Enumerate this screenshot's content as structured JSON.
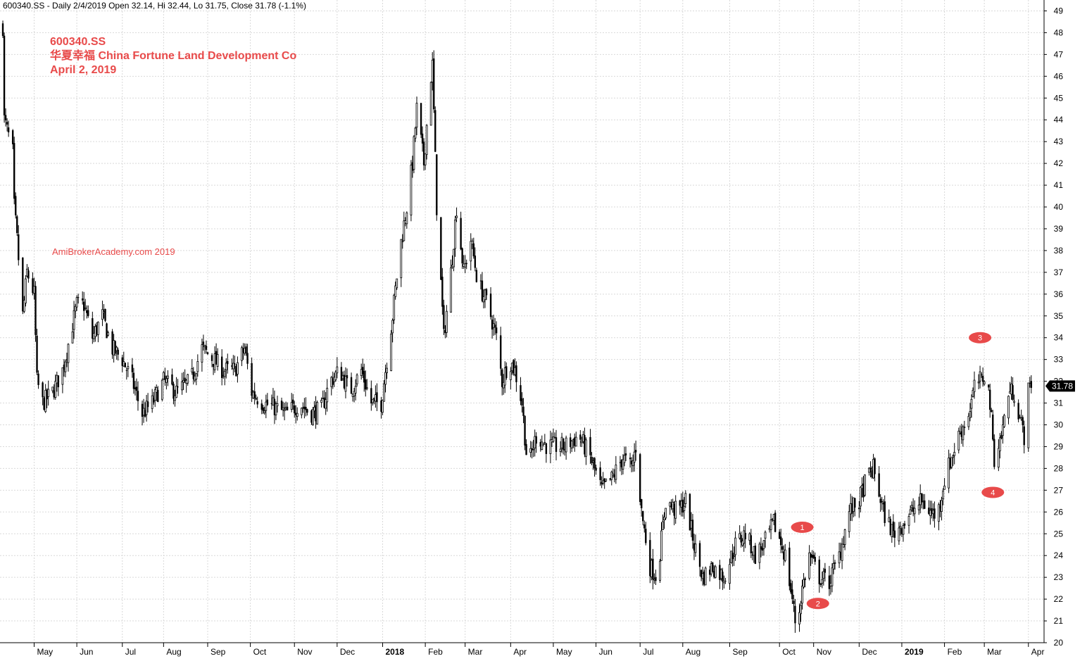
{
  "header": {
    "info_line": "600340.SS - Daily 2/4/2019 Open 32.14, Hi 32.44, Lo 31.75, Close 31.78 (-1.1%)"
  },
  "title_block": {
    "ticker": "600340.SS",
    "company": "华夏幸福  China Fortune Land Development Co",
    "date": "April 2, 2019"
  },
  "watermark": "AmiBrokerAcademy.com  2019",
  "colors": {
    "candles": "#000000",
    "annotation": "#e84a4a",
    "grid": "#d9d9d9",
    "price_tag_bg": "#000000",
    "price_tag_text": "#ffffff"
  },
  "chart_data": {
    "type": "candlestick",
    "title": "600340.SS",
    "ylim": [
      20,
      49.5
    ],
    "y_ticks": [
      20,
      21,
      22,
      23,
      24,
      25,
      26,
      27,
      28,
      29,
      30,
      31,
      32,
      33,
      34,
      35,
      36,
      37,
      38,
      39,
      40,
      41,
      42,
      43,
      44,
      45,
      46,
      47,
      48,
      49
    ],
    "x_range": [
      "2017-04-08",
      "2019-04-12"
    ],
    "x_ticks": [
      {
        "label": "May",
        "date": "2017-05-02",
        "bold": false
      },
      {
        "label": "Jun",
        "date": "2017-06-01",
        "bold": false
      },
      {
        "label": "Jul",
        "date": "2017-07-03",
        "bold": false
      },
      {
        "label": "Aug",
        "date": "2017-08-01",
        "bold": false
      },
      {
        "label": "Sep",
        "date": "2017-09-01",
        "bold": false
      },
      {
        "label": "Oct",
        "date": "2017-10-01",
        "bold": false
      },
      {
        "label": "Nov",
        "date": "2017-11-01",
        "bold": false
      },
      {
        "label": "Dec",
        "date": "2017-12-01",
        "bold": false
      },
      {
        "label": "2018",
        "date": "2018-01-02",
        "bold": true
      },
      {
        "label": "Feb",
        "date": "2018-02-01",
        "bold": false
      },
      {
        "label": "Mar",
        "date": "2018-03-01",
        "bold": false
      },
      {
        "label": "Apr",
        "date": "2018-04-02",
        "bold": false
      },
      {
        "label": "May",
        "date": "2018-05-02",
        "bold": false
      },
      {
        "label": "Jun",
        "date": "2018-06-01",
        "bold": false
      },
      {
        "label": "Jul",
        "date": "2018-07-02",
        "bold": false
      },
      {
        "label": "Aug",
        "date": "2018-08-01",
        "bold": false
      },
      {
        "label": "Sep",
        "date": "2018-09-03",
        "bold": false
      },
      {
        "label": "Oct",
        "date": "2018-10-08",
        "bold": false
      },
      {
        "label": "Nov",
        "date": "2018-11-01",
        "bold": false
      },
      {
        "label": "Dec",
        "date": "2018-12-03",
        "bold": false
      },
      {
        "label": "2019",
        "date": "2019-01-02",
        "bold": true
      },
      {
        "label": "Feb",
        "date": "2019-02-01",
        "bold": false
      },
      {
        "label": "Mar",
        "date": "2019-03-01",
        "bold": false
      },
      {
        "label": "Apr",
        "date": "2019-04-01",
        "bold": false
      }
    ],
    "price_path": [
      [
        "2017-04-10",
        48.3
      ],
      [
        "2017-04-11",
        44.0
      ],
      [
        "2017-04-17",
        42.5
      ],
      [
        "2017-04-18",
        40.0
      ],
      [
        "2017-04-20",
        38.5
      ],
      [
        "2017-04-24",
        35.0
      ],
      [
        "2017-04-27",
        37.0
      ],
      [
        "2017-05-02",
        36.0
      ],
      [
        "2017-05-04",
        32.0
      ],
      [
        "2017-05-08",
        31.0
      ],
      [
        "2017-05-15",
        31.5
      ],
      [
        "2017-05-22",
        32.5
      ],
      [
        "2017-06-01",
        35.5
      ],
      [
        "2017-06-06",
        35.5
      ],
      [
        "2017-06-12",
        34.0
      ],
      [
        "2017-06-19",
        35.0
      ],
      [
        "2017-06-26",
        33.5
      ],
      [
        "2017-07-03",
        33.0
      ],
      [
        "2017-07-10",
        32.0
      ],
      [
        "2017-07-17",
        30.5
      ],
      [
        "2017-07-24",
        31.0
      ],
      [
        "2017-08-01",
        32.0
      ],
      [
        "2017-08-10",
        31.5
      ],
      [
        "2017-08-20",
        32.0
      ],
      [
        "2017-08-28",
        33.5
      ],
      [
        "2017-09-05",
        33.0
      ],
      [
        "2017-09-12",
        32.5
      ],
      [
        "2017-09-20",
        32.5
      ],
      [
        "2017-09-27",
        33.5
      ],
      [
        "2017-10-02",
        31.5
      ],
      [
        "2017-10-10",
        31.0
      ],
      [
        "2017-10-18",
        30.8
      ],
      [
        "2017-10-26",
        30.5
      ],
      [
        "2017-11-05",
        31.0
      ],
      [
        "2017-11-12",
        30.5
      ],
      [
        "2017-11-20",
        30.7
      ],
      [
        "2017-11-26",
        32.0
      ],
      [
        "2017-12-03",
        32.5
      ],
      [
        "2017-12-10",
        31.5
      ],
      [
        "2017-12-18",
        32.5
      ],
      [
        "2017-12-25",
        31.0
      ],
      [
        "2018-01-01",
        31.0
      ],
      [
        "2018-01-05",
        33.0
      ],
      [
        "2018-01-09",
        35.0
      ],
      [
        "2018-01-14",
        38.0
      ],
      [
        "2018-01-19",
        40.0
      ],
      [
        "2018-01-23",
        42.0
      ],
      [
        "2018-01-26",
        44.5
      ],
      [
        "2018-01-31",
        42.0
      ],
      [
        "2018-02-04",
        45.5
      ],
      [
        "2018-02-06",
        46.5
      ],
      [
        "2018-02-09",
        40.0
      ],
      [
        "2018-02-12",
        36.5
      ],
      [
        "2018-02-14",
        34.0
      ],
      [
        "2018-02-19",
        37.0
      ],
      [
        "2018-02-23",
        40.0
      ],
      [
        "2018-02-28",
        37.0
      ],
      [
        "2018-03-05",
        38.5
      ],
      [
        "2018-03-10",
        36.5
      ],
      [
        "2018-03-17",
        35.5
      ],
      [
        "2018-03-23",
        34.0
      ],
      [
        "2018-03-27",
        32.0
      ],
      [
        "2018-04-01",
        33.0
      ],
      [
        "2018-04-05",
        32.5
      ],
      [
        "2018-04-10",
        31.0
      ],
      [
        "2018-04-14",
        28.0
      ],
      [
        "2018-04-20",
        29.5
      ],
      [
        "2018-04-28",
        29.0
      ],
      [
        "2018-05-10",
        29.0
      ],
      [
        "2018-05-20",
        29.5
      ],
      [
        "2018-05-28",
        28.5
      ],
      [
        "2018-06-05",
        27.0
      ],
      [
        "2018-06-12",
        27.5
      ],
      [
        "2018-06-20",
        28.5
      ],
      [
        "2018-06-26",
        28.0
      ],
      [
        "2018-06-29",
        29.0
      ],
      [
        "2018-07-03",
        26.0
      ],
      [
        "2018-07-09",
        23.5
      ],
      [
        "2018-07-14",
        23.0
      ],
      [
        "2018-07-20",
        26.5
      ],
      [
        "2018-07-28",
        26.0
      ],
      [
        "2018-08-03",
        26.5
      ],
      [
        "2018-08-09",
        24.5
      ],
      [
        "2018-08-15",
        23.0
      ],
      [
        "2018-08-22",
        23.5
      ],
      [
        "2018-08-30",
        23.0
      ],
      [
        "2018-09-07",
        24.5
      ],
      [
        "2018-09-14",
        25.0
      ],
      [
        "2018-09-21",
        24.0
      ],
      [
        "2018-09-27",
        24.5
      ],
      [
        "2018-10-04",
        25.5
      ],
      [
        "2018-10-12",
        24.0
      ],
      [
        "2018-10-17",
        22.0
      ],
      [
        "2018-10-20",
        20.5
      ],
      [
        "2018-10-24",
        22.5
      ],
      [
        "2018-10-29",
        24.0
      ],
      [
        "2018-11-05",
        23.0
      ],
      [
        "2018-11-12",
        22.8
      ],
      [
        "2018-11-19",
        24.0
      ],
      [
        "2018-11-26",
        26.0
      ],
      [
        "2018-12-03",
        26.5
      ],
      [
        "2018-12-08",
        27.5
      ],
      [
        "2018-12-13",
        28.0
      ],
      [
        "2018-12-20",
        26.0
      ],
      [
        "2018-12-27",
        25.0
      ],
      [
        "2019-01-03",
        25.5
      ],
      [
        "2019-01-09",
        26.0
      ],
      [
        "2019-01-16",
        26.5
      ],
      [
        "2019-01-22",
        26.0
      ],
      [
        "2019-01-27",
        25.8
      ],
      [
        "2019-02-01",
        27.5
      ],
      [
        "2019-02-11",
        29.5
      ],
      [
        "2019-02-18",
        30.5
      ],
      [
        "2019-02-23",
        32.0
      ],
      [
        "2019-02-27",
        32.0
      ],
      [
        "2019-03-02",
        32.5
      ],
      [
        "2019-03-05",
        31.0
      ],
      [
        "2019-03-08",
        28.5
      ],
      [
        "2019-03-13",
        29.5
      ],
      [
        "2019-03-18",
        31.5
      ],
      [
        "2019-03-22",
        31.5
      ],
      [
        "2019-03-27",
        30.0
      ],
      [
        "2019-03-29",
        29.5
      ],
      [
        "2019-04-01",
        31.5
      ],
      [
        "2019-04-03",
        32.0
      ]
    ],
    "last_price": "31.78",
    "last_date": "2019-04-03",
    "annotations": [
      {
        "label": "1",
        "date": "2018-10-24",
        "price": 25.3
      },
      {
        "label": "2",
        "date": "2018-11-04",
        "price": 21.8
      },
      {
        "label": "3",
        "date": "2019-02-26",
        "price": 34.0
      },
      {
        "label": "4",
        "date": "2019-03-07",
        "price": 26.9
      }
    ]
  }
}
